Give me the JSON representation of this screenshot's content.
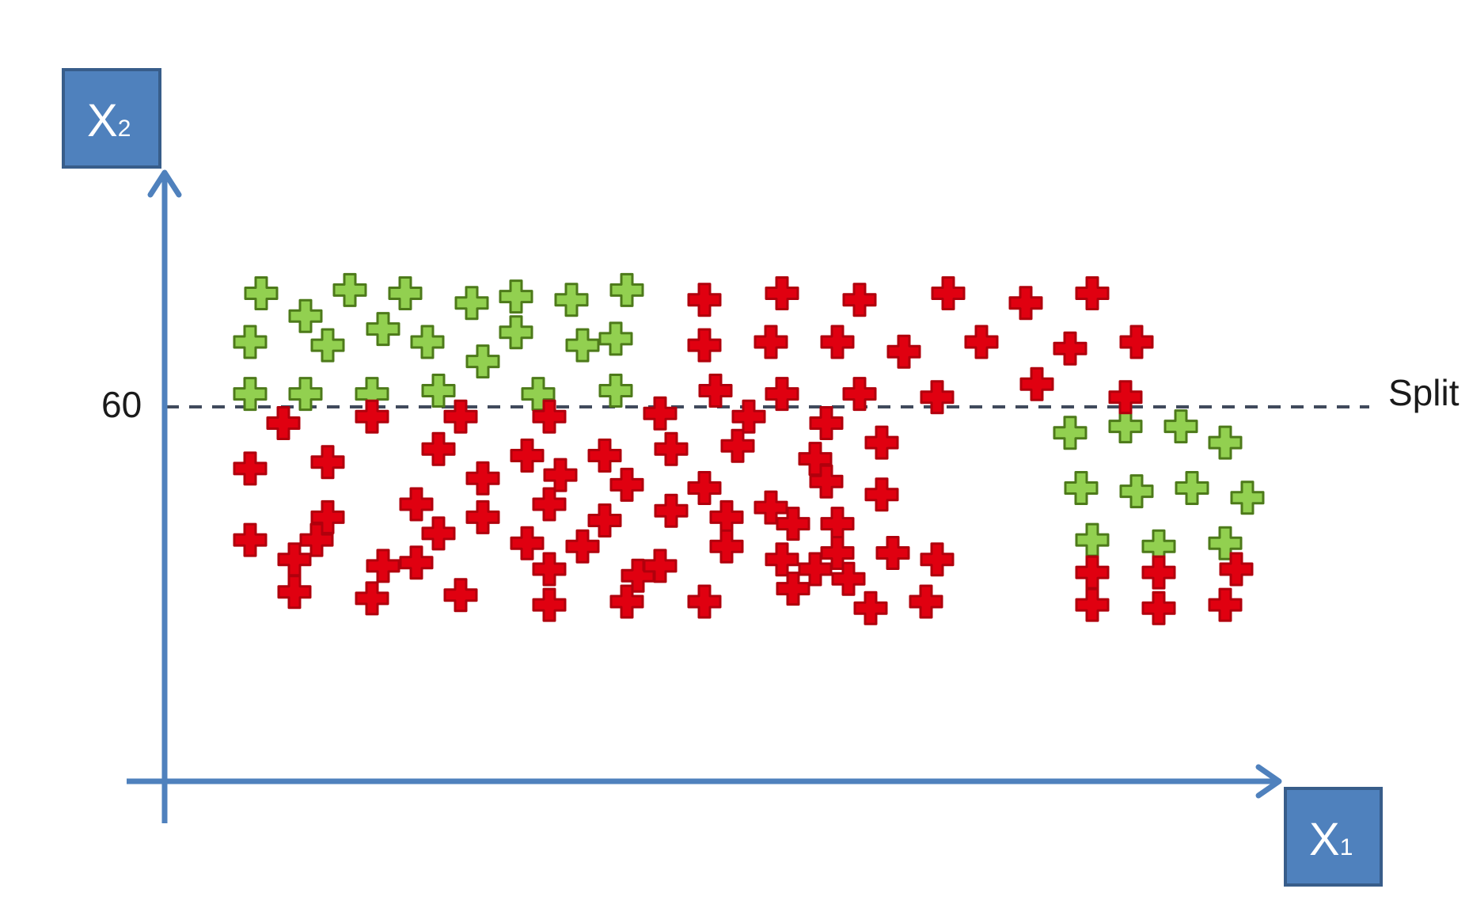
{
  "colors": {
    "background": "#ffffff",
    "axis": "#4f81bd",
    "axis_box_fill": "#4f81bd",
    "axis_box_border": "#385d8a",
    "split_line": "#404a5c",
    "green_marker_fill": "#92d050",
    "green_marker_stroke": "#4d7a1a",
    "red_marker_fill": "#e00010",
    "red_marker_stroke": "#b0000c"
  },
  "y_axis_box": {
    "main": "X",
    "sub": "2"
  },
  "x_axis_box": {
    "main": "X",
    "sub": "1"
  },
  "split": {
    "value_label": "60",
    "label": "Split"
  },
  "points": {
    "green": [
      [
        0.05,
        95
      ],
      [
        0.09,
        88
      ],
      [
        0.13,
        96
      ],
      [
        0.18,
        95
      ],
      [
        0.24,
        92
      ],
      [
        0.28,
        94
      ],
      [
        0.33,
        93
      ],
      [
        0.38,
        96
      ],
      [
        0.04,
        80
      ],
      [
        0.11,
        79
      ],
      [
        0.16,
        84
      ],
      [
        0.2,
        80
      ],
      [
        0.25,
        74
      ],
      [
        0.28,
        83
      ],
      [
        0.34,
        79
      ],
      [
        0.37,
        81
      ],
      [
        0.04,
        64
      ],
      [
        0.09,
        64
      ],
      [
        0.15,
        64
      ],
      [
        0.21,
        65
      ],
      [
        0.3,
        64
      ],
      [
        0.37,
        65
      ],
      [
        0.78,
        52
      ],
      [
        0.83,
        54
      ],
      [
        0.88,
        54
      ],
      [
        0.92,
        49
      ],
      [
        0.79,
        35
      ],
      [
        0.84,
        34
      ],
      [
        0.89,
        35
      ],
      [
        0.94,
        32
      ],
      [
        0.8,
        19
      ],
      [
        0.86,
        17
      ],
      [
        0.92,
        18
      ]
    ],
    "red": [
      [
        0.45,
        93
      ],
      [
        0.52,
        95
      ],
      [
        0.59,
        93
      ],
      [
        0.67,
        95
      ],
      [
        0.74,
        92
      ],
      [
        0.8,
        95
      ],
      [
        0.45,
        79
      ],
      [
        0.51,
        80
      ],
      [
        0.57,
        80
      ],
      [
        0.63,
        77
      ],
      [
        0.7,
        80
      ],
      [
        0.78,
        78
      ],
      [
        0.84,
        80
      ],
      [
        0.46,
        65
      ],
      [
        0.52,
        64
      ],
      [
        0.59,
        64
      ],
      [
        0.66,
        63
      ],
      [
        0.75,
        67
      ],
      [
        0.83,
        63
      ],
      [
        0.07,
        55
      ],
      [
        0.15,
        57
      ],
      [
        0.23,
        57
      ],
      [
        0.31,
        57
      ],
      [
        0.41,
        58
      ],
      [
        0.49,
        57
      ],
      [
        0.56,
        55
      ],
      [
        0.61,
        49
      ],
      [
        0.21,
        47
      ],
      [
        0.29,
        45
      ],
      [
        0.36,
        45
      ],
      [
        0.42,
        47
      ],
      [
        0.48,
        48
      ],
      [
        0.55,
        44
      ],
      [
        0.04,
        41
      ],
      [
        0.11,
        43
      ],
      [
        0.25,
        38
      ],
      [
        0.32,
        39
      ],
      [
        0.38,
        36
      ],
      [
        0.45,
        35
      ],
      [
        0.51,
        29
      ],
      [
        0.56,
        37
      ],
      [
        0.61,
        33
      ],
      [
        0.11,
        26
      ],
      [
        0.19,
        30
      ],
      [
        0.25,
        26
      ],
      [
        0.31,
        30
      ],
      [
        0.36,
        25
      ],
      [
        0.42,
        28
      ],
      [
        0.47,
        26
      ],
      [
        0.53,
        24
      ],
      [
        0.57,
        24
      ],
      [
        0.04,
        19
      ],
      [
        0.1,
        19
      ],
      [
        0.16,
        11
      ],
      [
        0.21,
        21
      ],
      [
        0.29,
        18
      ],
      [
        0.34,
        17
      ],
      [
        0.39,
        8
      ],
      [
        0.47,
        17
      ],
      [
        0.52,
        13
      ],
      [
        0.57,
        15
      ],
      [
        0.62,
        15
      ],
      [
        0.66,
        13
      ],
      [
        0.08,
        13
      ],
      [
        0.19,
        12
      ],
      [
        0.31,
        10
      ],
      [
        0.41,
        11
      ],
      [
        0.55,
        10
      ],
      [
        0.58,
        7
      ],
      [
        0.08,
        3
      ],
      [
        0.15,
        1
      ],
      [
        0.23,
        2
      ],
      [
        0.31,
        -1
      ],
      [
        0.38,
        0
      ],
      [
        0.45,
        0
      ],
      [
        0.53,
        4
      ],
      [
        0.6,
        -2
      ],
      [
        0.65,
        0
      ],
      [
        0.8,
        9
      ],
      [
        0.86,
        9
      ],
      [
        0.93,
        10
      ],
      [
        0.8,
        -1
      ],
      [
        0.86,
        -2
      ],
      [
        0.92,
        -1
      ]
    ]
  }
}
